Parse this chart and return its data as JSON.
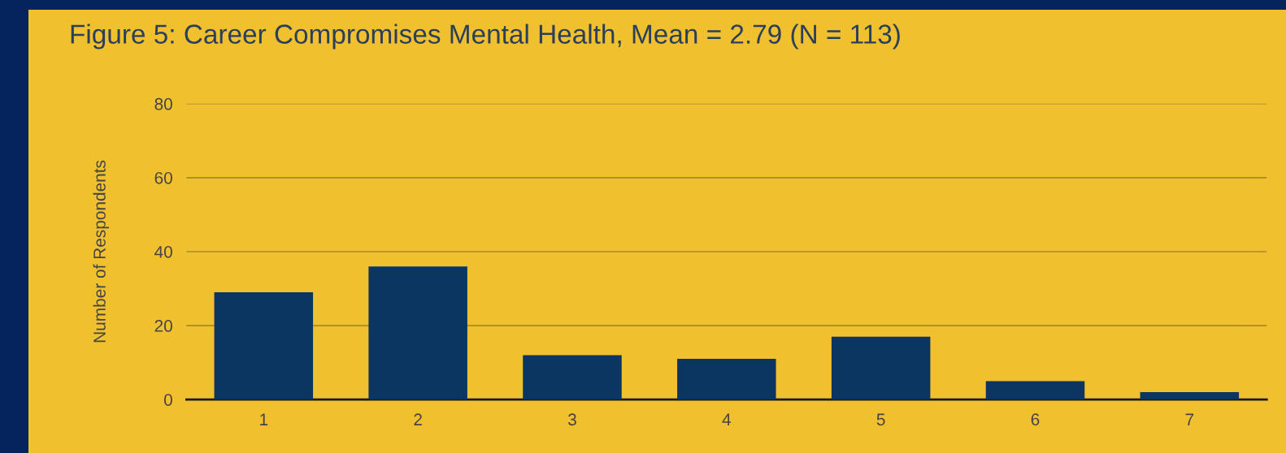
{
  "chart_data": {
    "type": "bar",
    "title": "Figure 5: Career Compromises Mental Health, Mean = 2.79 (N = 113)",
    "ylabel": "Number of Respondents",
    "categories": [
      "1",
      "2",
      "3",
      "4",
      "5",
      "6",
      "7"
    ],
    "values": [
      29,
      36,
      12,
      11,
      17,
      5,
      2
    ],
    "color": "#0a3661",
    "ylim": [
      0,
      80
    ],
    "yticks": [
      0,
      20,
      40,
      60,
      80
    ],
    "grid": "y",
    "legend": false
  }
}
